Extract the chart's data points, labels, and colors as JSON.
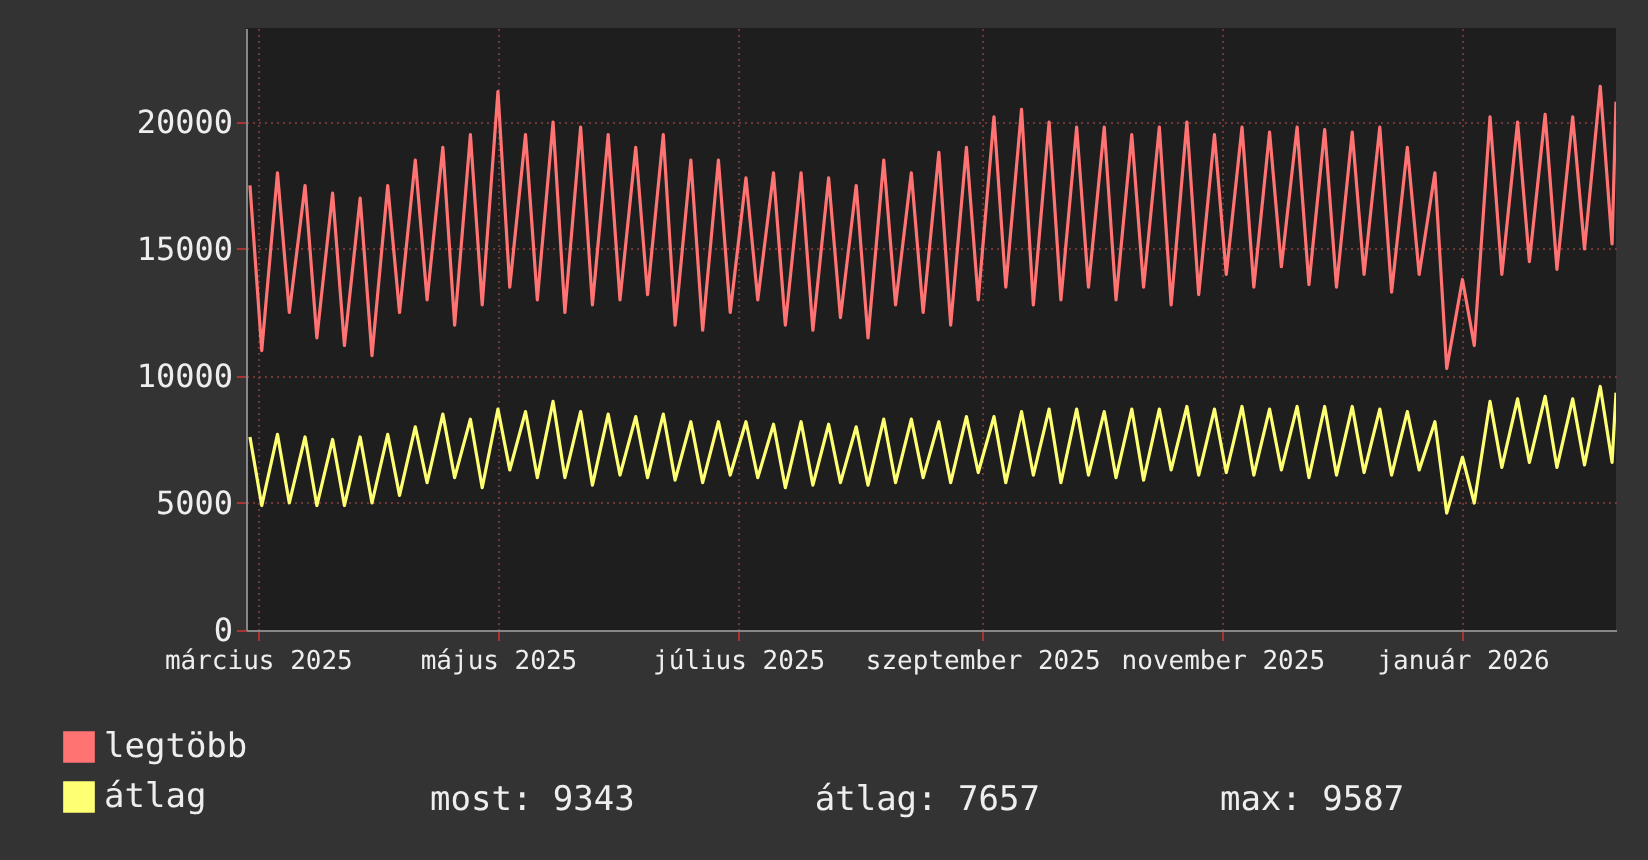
{
  "chart_data": {
    "type": "line",
    "x": [
      "2025-02-27",
      "2025-03-02",
      "2025-03-06",
      "2025-03-09",
      "2025-03-13",
      "2025-03-16",
      "2025-03-20",
      "2025-03-23",
      "2025-03-27",
      "2025-03-30",
      "2025-04-03",
      "2025-04-06",
      "2025-04-10",
      "2025-04-13",
      "2025-04-17",
      "2025-04-20",
      "2025-04-24",
      "2025-04-27",
      "2025-05-01",
      "2025-05-04",
      "2025-05-08",
      "2025-05-11",
      "2025-05-15",
      "2025-05-18",
      "2025-05-22",
      "2025-05-25",
      "2025-05-29",
      "2025-06-01",
      "2025-06-05",
      "2025-06-08",
      "2025-06-12",
      "2025-06-15",
      "2025-06-19",
      "2025-06-22",
      "2025-06-26",
      "2025-06-29",
      "2025-07-03",
      "2025-07-06",
      "2025-07-10",
      "2025-07-13",
      "2025-07-17",
      "2025-07-20",
      "2025-07-24",
      "2025-07-27",
      "2025-07-31",
      "2025-08-03",
      "2025-08-07",
      "2025-08-10",
      "2025-08-14",
      "2025-08-17",
      "2025-08-21",
      "2025-08-24",
      "2025-08-28",
      "2025-08-31",
      "2025-09-04",
      "2025-09-07",
      "2025-09-11",
      "2025-09-14",
      "2025-09-18",
      "2025-09-21",
      "2025-09-25",
      "2025-09-28",
      "2025-10-02",
      "2025-10-05",
      "2025-10-09",
      "2025-10-12",
      "2025-10-16",
      "2025-10-19",
      "2025-10-23",
      "2025-10-26",
      "2025-10-30",
      "2025-11-02",
      "2025-11-06",
      "2025-11-09",
      "2025-11-13",
      "2025-11-16",
      "2025-11-20",
      "2025-11-23",
      "2025-11-27",
      "2025-11-30",
      "2025-12-04",
      "2025-12-07",
      "2025-12-11",
      "2025-12-14",
      "2025-12-18",
      "2025-12-21",
      "2025-12-25",
      "2025-12-28",
      "2026-01-01",
      "2026-01-04",
      "2026-01-08",
      "2026-01-11",
      "2026-01-15",
      "2026-01-18",
      "2026-01-22",
      "2026-01-25",
      "2026-01-29",
      "2026-02-01",
      "2026-02-05",
      "2026-02-08",
      "2026-02-09"
    ],
    "series": [
      {
        "name": "legtöbb",
        "color": "#ff7373",
        "values": [
          17500,
          11000,
          18000,
          12500,
          17500,
          11500,
          17200,
          11200,
          17000,
          10800,
          17500,
          12500,
          18500,
          13000,
          19000,
          12000,
          19500,
          12800,
          21200,
          13500,
          19500,
          13000,
          20000,
          12500,
          19800,
          12800,
          19500,
          13000,
          19000,
          13200,
          19500,
          12000,
          18500,
          11800,
          18500,
          12500,
          17800,
          13000,
          18000,
          12000,
          18000,
          11800,
          17800,
          12300,
          17500,
          11500,
          18500,
          12800,
          18000,
          12500,
          18800,
          12000,
          19000,
          13000,
          20200,
          13500,
          20500,
          12800,
          20000,
          13000,
          19800,
          13500,
          19800,
          13000,
          19500,
          13500,
          19800,
          12800,
          20000,
          13200,
          19500,
          14000,
          19800,
          13500,
          19600,
          14300,
          19800,
          13600,
          19700,
          13500,
          19600,
          14000,
          19800,
          13300,
          19000,
          14000,
          18000,
          10300,
          13800,
          11200,
          20200,
          14000,
          20000,
          14500,
          20300,
          14200,
          20200,
          15000,
          21400,
          15200,
          20800
        ]
      },
      {
        "name": "átlag",
        "color": "#ffff73",
        "values": [
          7600,
          4900,
          7700,
          5000,
          7600,
          4900,
          7500,
          4900,
          7600,
          5000,
          7700,
          5300,
          8000,
          5800,
          8500,
          6000,
          8300,
          5600,
          8700,
          6300,
          8600,
          6000,
          9000,
          6000,
          8600,
          5700,
          8500,
          6100,
          8400,
          6000,
          8500,
          5900,
          8200,
          5800,
          8200,
          6100,
          8200,
          6000,
          8100,
          5600,
          8200,
          5700,
          8100,
          5800,
          8000,
          5700,
          8300,
          5800,
          8300,
          6000,
          8200,
          5800,
          8400,
          6200,
          8400,
          5800,
          8600,
          6100,
          8700,
          5800,
          8700,
          6100,
          8600,
          6000,
          8700,
          5900,
          8700,
          6300,
          8800,
          6100,
          8700,
          6200,
          8800,
          6100,
          8700,
          6300,
          8800,
          6000,
          8800,
          6100,
          8800,
          6200,
          8700,
          6100,
          8600,
          6300,
          8200,
          4600,
          6800,
          5000,
          9000,
          6400,
          9100,
          6600,
          9200,
          6400,
          9100,
          6500,
          9587,
          6600,
          9343
        ]
      }
    ],
    "xlim": [
      "2025-02-26",
      "2026-02-09"
    ],
    "xticks": [
      {
        "value": "2025-03-01",
        "label": "március 2025"
      },
      {
        "value": "2025-05-01",
        "label": "május 2025"
      },
      {
        "value": "2025-07-01",
        "label": "július 2025"
      },
      {
        "value": "2025-09-01",
        "label": "szeptember 2025"
      },
      {
        "value": "2025-11-01",
        "label": "november 2025"
      },
      {
        "value": "2026-01-01",
        "label": "január 2026"
      }
    ],
    "ylim": [
      0,
      23700
    ],
    "yticks": [
      0,
      5000,
      10000,
      15000,
      20000
    ],
    "grid": true,
    "legend": "bottom left",
    "annotations": [
      "most: 9343",
      "átlag: 7657",
      "max: 9587"
    ]
  }
}
